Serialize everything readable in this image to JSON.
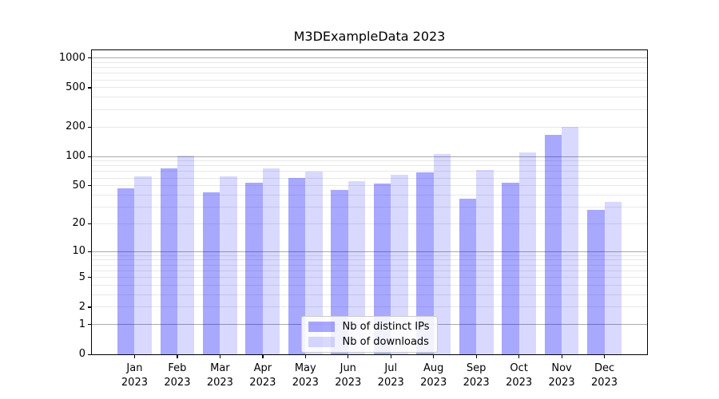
{
  "chart_data": {
    "type": "bar",
    "title": "M3DExampleData 2023",
    "categories": [
      "Jan\n2023",
      "Feb\n2023",
      "Mar\n2023",
      "Apr\n2023",
      "May\n2023",
      "Jun\n2023",
      "Jul\n2023",
      "Aug\n2023",
      "Sep\n2023",
      "Oct\n2023",
      "Nov\n2023",
      "Dec\n2023"
    ],
    "series": [
      {
        "name": "Nb of distinct IPs",
        "color": "rgba(0,0,255,0.34)",
        "values": [
          47,
          75,
          43,
          54,
          60,
          45,
          53,
          69,
          37,
          54,
          165,
          28
        ]
      },
      {
        "name": "Nb of downloads",
        "color": "rgba(0,0,255,0.15)",
        "values": [
          63,
          102,
          63,
          75,
          70,
          56,
          65,
          106,
          72,
          110,
          200,
          34
        ]
      }
    ],
    "xlabel": "",
    "ylabel": "",
    "yscale": "log1p",
    "ylim": [
      0,
      1200
    ],
    "yticks": [
      0,
      1,
      2,
      5,
      10,
      20,
      50,
      100,
      200,
      500,
      1000
    ],
    "grid": {
      "major_values": [
        1,
        10,
        100,
        1000
      ],
      "minor_multiples": [
        2,
        3,
        4,
        5,
        6,
        7,
        8,
        9
      ],
      "major_color": "#ababab",
      "minor_color": "#e8e8e8"
    },
    "legend_position": "lower center",
    "colors": {
      "axis": "#000000",
      "legend_border": "#cccccc",
      "legend_background": "rgba(255,255,255,0.85)"
    }
  }
}
